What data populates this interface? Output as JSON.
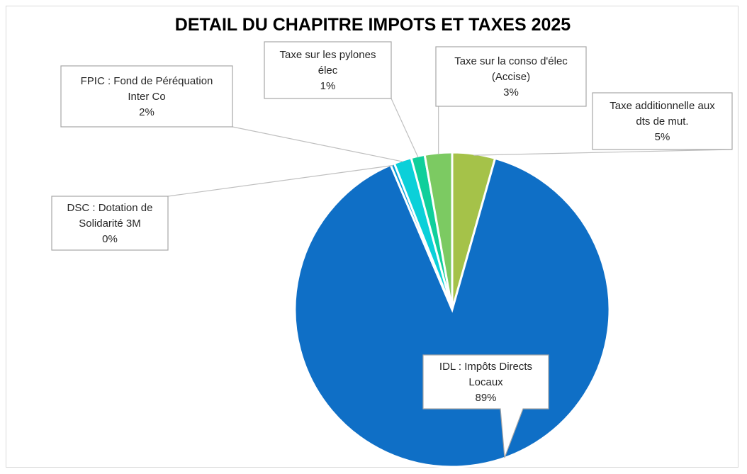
{
  "chart_data": {
    "type": "pie",
    "title": "DETAIL DU CHAPITRE IMPOTS ET TAXES 2025",
    "slices": [
      {
        "name": "Taxe additionnelle aux dts de mut.",
        "label_lines": [
          "Taxe additionnelle aux",
          "dts de mut."
        ],
        "pct_label": "5%",
        "value": 4.4,
        "color": "#a5c249"
      },
      {
        "name": "IDL : Impôts Directs Locaux",
        "label_lines": [
          "IDL : Impôts Directs",
          "Locaux"
        ],
        "pct_label": "89%",
        "value": 89.2,
        "color": "#0f6fc6"
      },
      {
        "name": "DSC : Dotation de Solidarité 3M",
        "label_lines": [
          "DSC : Dotation de",
          "Solidarité 3M"
        ],
        "pct_label": "0%",
        "value": 0.4,
        "color": "#009dd9"
      },
      {
        "name": "FPIC : Fond de Péréquation Inter Co",
        "label_lines": [
          "FPIC : Fond de Péréquation",
          "Inter Co"
        ],
        "pct_label": "2%",
        "value": 1.8,
        "color": "#0bd0d9"
      },
      {
        "name": "Taxe sur les pylones élec",
        "label_lines": [
          "Taxe sur les pylones",
          "élec"
        ],
        "pct_label": "1%",
        "value": 1.4,
        "color": "#10cf9b"
      },
      {
        "name": "Taxe sur la conso d'élec (Accise)",
        "label_lines": [
          "Taxe sur la conso d'élec",
          "(Accise)"
        ],
        "pct_label": "3%",
        "value": 2.8,
        "color": "#7cca62"
      }
    ]
  }
}
